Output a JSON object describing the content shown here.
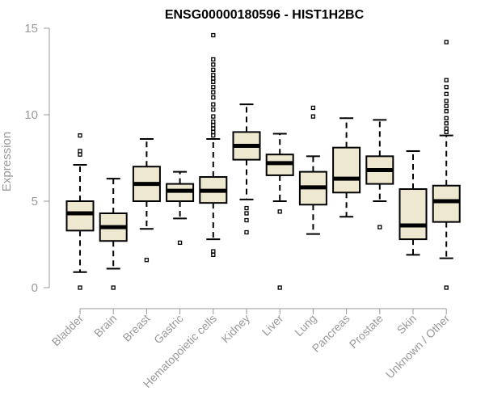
{
  "chart_data": {
    "type": "boxplot",
    "title": "ENSG00000180596 - HIST1H2BC",
    "xlabel": "",
    "ylabel": "Expression",
    "ylim": [
      0,
      15
    ],
    "yticks": [
      0,
      5,
      10,
      15
    ],
    "box_fill": "#efe8d0",
    "categories": [
      "Bladder",
      "Brain",
      "Breast",
      "Gastric",
      "Hematopoietic cells",
      "Kidney",
      "Liver",
      "Lung",
      "Pancreas",
      "Prostate",
      "Skin",
      "Unknown / Other"
    ],
    "boxes": [
      {
        "name": "Bladder",
        "whisker_low": 0.9,
        "q1": 3.3,
        "median": 4.3,
        "q3": 5.0,
        "whisker_high": 7.1,
        "outliers": [
          0.0,
          7.7,
          7.9,
          8.8
        ]
      },
      {
        "name": "Brain",
        "whisker_low": 1.1,
        "q1": 2.7,
        "median": 3.5,
        "q3": 4.3,
        "whisker_high": 6.3,
        "outliers": [
          0.0
        ]
      },
      {
        "name": "Breast",
        "whisker_low": 3.4,
        "q1": 5.0,
        "median": 6.0,
        "q3": 7.0,
        "whisker_high": 8.6,
        "outliers": [
          1.6
        ]
      },
      {
        "name": "Gastric",
        "whisker_low": 4.0,
        "q1": 5.0,
        "median": 5.6,
        "q3": 6.0,
        "whisker_high": 6.7,
        "outliers": [
          2.6
        ]
      },
      {
        "name": "Hematopoietic cells",
        "whisker_low": 2.8,
        "q1": 4.9,
        "median": 5.6,
        "q3": 6.4,
        "whisker_high": 8.6,
        "outliers": [
          1.9,
          2.1,
          8.8,
          9.0,
          9.2,
          9.4,
          9.6,
          9.9,
          10.3,
          10.6,
          11.0,
          11.3,
          11.6,
          11.9,
          12.1,
          12.3,
          12.6,
          12.9,
          13.2,
          14.6
        ]
      },
      {
        "name": "Kidney",
        "whisker_low": 5.1,
        "q1": 7.4,
        "median": 8.2,
        "q3": 9.0,
        "whisker_high": 10.6,
        "outliers": [
          3.2,
          3.9,
          4.3,
          4.6
        ]
      },
      {
        "name": "Liver",
        "whisker_low": 5.0,
        "q1": 6.5,
        "median": 7.2,
        "q3": 7.7,
        "whisker_high": 8.9,
        "outliers": [
          0.0,
          4.4
        ]
      },
      {
        "name": "Lung",
        "whisker_low": 3.1,
        "q1": 4.8,
        "median": 5.8,
        "q3": 6.7,
        "whisker_high": 7.6,
        "outliers": [
          9.9,
          10.4
        ]
      },
      {
        "name": "Pancreas",
        "whisker_low": 4.1,
        "q1": 5.5,
        "median": 6.3,
        "q3": 8.1,
        "whisker_high": 9.8,
        "outliers": []
      },
      {
        "name": "Prostate",
        "whisker_low": 5.0,
        "q1": 6.0,
        "median": 6.8,
        "q3": 7.6,
        "whisker_high": 9.7,
        "outliers": [
          3.5
        ]
      },
      {
        "name": "Skin",
        "whisker_low": 1.9,
        "q1": 2.8,
        "median": 3.6,
        "q3": 5.7,
        "whisker_high": 7.9,
        "outliers": []
      },
      {
        "name": "Unknown / Other",
        "whisker_low": 1.7,
        "q1": 3.8,
        "median": 5.0,
        "q3": 5.9,
        "whisker_high": 8.8,
        "outliers": [
          0.0,
          9.0,
          9.2,
          9.5,
          9.8,
          10.2,
          10.5,
          10.8,
          11.2,
          11.6,
          12.0,
          14.2
        ]
      }
    ]
  }
}
